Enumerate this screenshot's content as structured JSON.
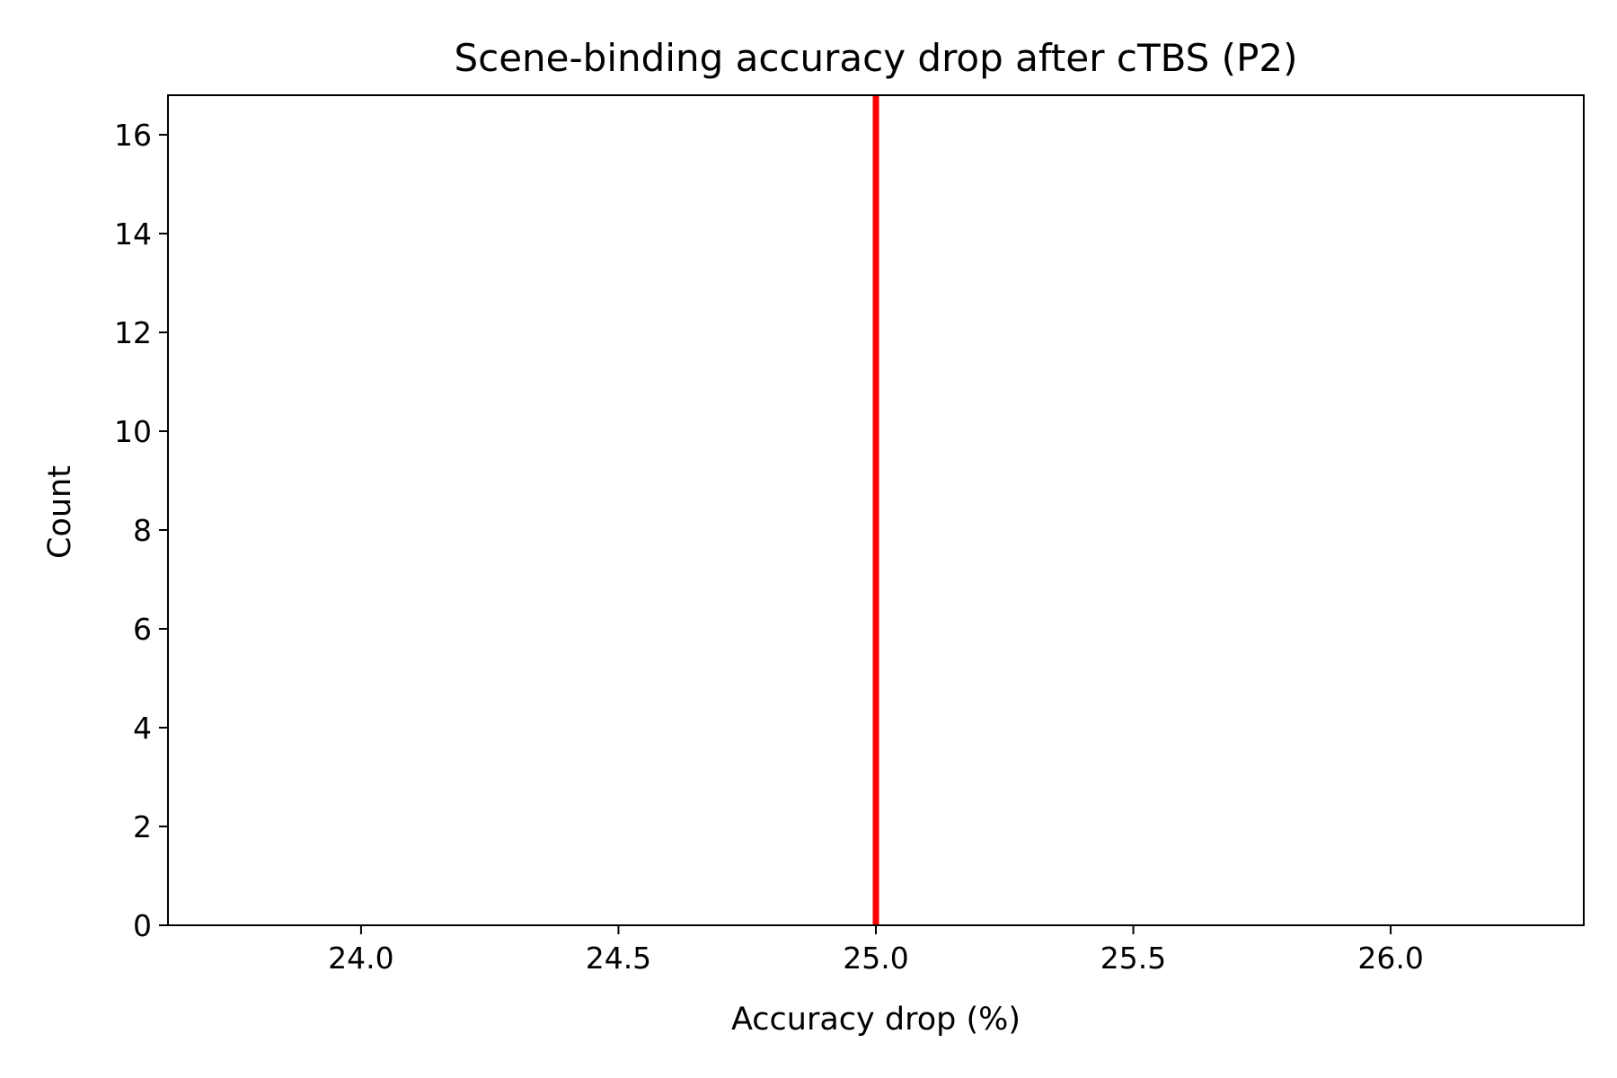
{
  "chart_data": {
    "type": "histogram",
    "title": "Scene-binding accuracy drop after cTBS (P2)",
    "xlabel": "Accuracy drop (%)",
    "ylabel": "Count",
    "xlim": [
      23.625,
      26.375
    ],
    "ylim": [
      0,
      16.8
    ],
    "xticks": [
      {
        "value": 24.0,
        "label": "24.0"
      },
      {
        "value": 24.5,
        "label": "24.5"
      },
      {
        "value": 25.0,
        "label": "25.0"
      },
      {
        "value": 25.5,
        "label": "25.5"
      },
      {
        "value": 26.0,
        "label": "26.0"
      }
    ],
    "yticks": [
      {
        "value": 0,
        "label": "0"
      },
      {
        "value": 2,
        "label": "2"
      },
      {
        "value": 4,
        "label": "4"
      },
      {
        "value": 6,
        "label": "6"
      },
      {
        "value": 8,
        "label": "8"
      },
      {
        "value": 10,
        "label": "10"
      },
      {
        "value": 12,
        "label": "12"
      },
      {
        "value": 14,
        "label": "14"
      },
      {
        "value": 16,
        "label": "16"
      }
    ],
    "vertical_line": {
      "x": 25.0,
      "color": "#ff0000"
    },
    "grid": false,
    "legend": "none"
  }
}
